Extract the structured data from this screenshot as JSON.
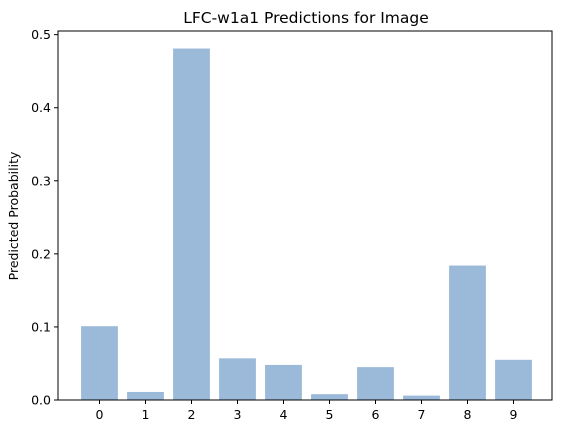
{
  "chart_data": {
    "type": "bar",
    "title": "LFC-w1a1 Predictions for Image",
    "xlabel": "",
    "ylabel": "Predicted Probability",
    "categories": [
      "0",
      "1",
      "2",
      "3",
      "4",
      "5",
      "6",
      "7",
      "8",
      "9"
    ],
    "values": [
      0.101,
      0.011,
      0.481,
      0.057,
      0.048,
      0.008,
      0.045,
      0.006,
      0.184,
      0.055
    ],
    "ylim": [
      0,
      0.505
    ],
    "yticks": [
      0.0,
      0.1,
      0.2,
      0.3,
      0.4,
      0.5
    ],
    "ytick_labels": [
      "0.0",
      "0.1",
      "0.2",
      "0.3",
      "0.4",
      "0.5"
    ],
    "bar_color": "#9bbad9",
    "grid": false,
    "legend": "none"
  }
}
